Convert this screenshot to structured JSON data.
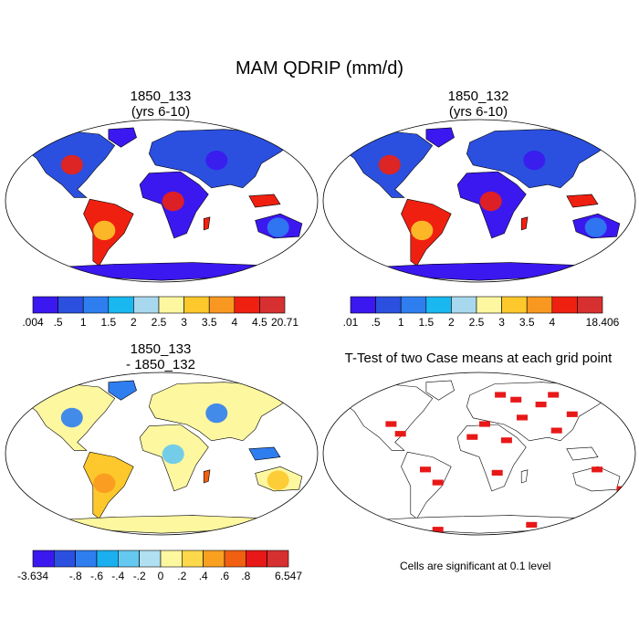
{
  "figure": {
    "title": "MAM QDRIP (mm/d)"
  },
  "panels": [
    {
      "id": "p1",
      "title_line1": "1850_133",
      "title_line2": "(yrs 6-10)",
      "kind": "climatology",
      "palette": "precip"
    },
    {
      "id": "p2",
      "title_line1": "1850_132",
      "title_line2": "(yrs 6-10)",
      "kind": "climatology",
      "palette": "precip"
    },
    {
      "id": "p3",
      "title_line1": "1850_133",
      "title_line2": "- 1850_132",
      "kind": "difference",
      "palette": "diff"
    },
    {
      "id": "p4",
      "title_line1": "T-Test of two Case means at each grid point",
      "title_line2": "",
      "kind": "ttest",
      "palette": "sig"
    }
  ],
  "colorbars": [
    {
      "id": "cb1",
      "colors": [
        "#3b18f0",
        "#2b50e0",
        "#2f7ef0",
        "#1ab8f0",
        "#a8d8ee",
        "#fdf7a0",
        "#fdc82b",
        "#f99820",
        "#f02010",
        "#d73030"
      ],
      "labels": [
        ".004",
        ".5",
        "1",
        "1.5",
        "2",
        "2.5",
        "3",
        "3.5",
        "4",
        "4.5",
        "20.71"
      ]
    },
    {
      "id": "cb2",
      "colors": [
        "#3b18f0",
        "#2b50e0",
        "#2f7ef0",
        "#1ab8f0",
        "#a8d8ee",
        "#fdf7a0",
        "#fdc82b",
        "#f99820",
        "#f02010",
        "#d73030"
      ],
      "labels": [
        ".01",
        ".5",
        "1",
        "1.5",
        "2",
        "2.5",
        "3",
        "3.5",
        "4",
        "",
        "18.406"
      ]
    },
    {
      "id": "cb3",
      "colors": [
        "#3b18f0",
        "#2b50e0",
        "#2f7ef0",
        "#1ab0f0",
        "#64c8f0",
        "#b0e0f2",
        "#fdf7a0",
        "#fdd84b",
        "#f9a020",
        "#f06010",
        "#e81818",
        "#d73030"
      ],
      "labels": [
        "-3.634",
        "",
        "-.8",
        "-.6",
        "-.4",
        "-.2",
        "0",
        ".2",
        ".4",
        ".6",
        ".8",
        "",
        "6.547"
      ]
    }
  ],
  "significance_note": "Cells are significant at 0.1 level",
  "chart_data": [
    {
      "type": "heatmap",
      "title": "1850_133 (yrs 6-10)",
      "variable": "MAM QDRIP",
      "units": "mm/d",
      "range": [
        0.004,
        20.71
      ],
      "levels": [
        0.5,
        1,
        1.5,
        2,
        2.5,
        3,
        3.5,
        4,
        4.5
      ]
    },
    {
      "type": "heatmap",
      "title": "1850_132 (yrs 6-10)",
      "variable": "MAM QDRIP",
      "units": "mm/d",
      "range": [
        0.01,
        18.406
      ],
      "levels": [
        0.5,
        1,
        1.5,
        2,
        2.5,
        3,
        3.5,
        4
      ]
    },
    {
      "type": "heatmap",
      "title": "1850_133 - 1850_132",
      "variable": "MAM QDRIP difference",
      "units": "mm/d",
      "range": [
        -3.634,
        6.547
      ],
      "levels": [
        -0.8,
        -0.6,
        -0.4,
        -0.2,
        0,
        0.2,
        0.4,
        0.6,
        0.8
      ]
    },
    {
      "type": "heatmap",
      "title": "T-Test of two Case means at each grid point",
      "significance_level": 0.1
    }
  ]
}
